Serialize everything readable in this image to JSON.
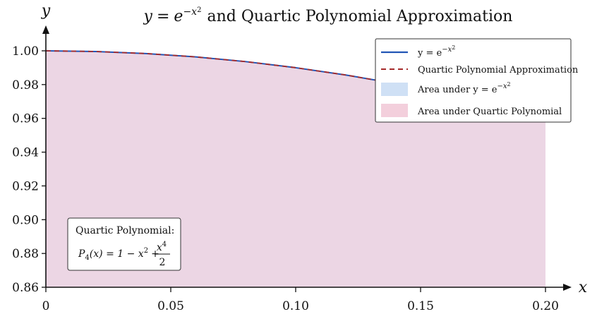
{
  "chart_data": {
    "type": "area",
    "title": {
      "lhs": "y",
      "eq": "=",
      "base": "e",
      "exp": "−x",
      "exp_pow": "2",
      "rest": "and Quartic Polynomial Approximation"
    },
    "xlabel": "x",
    "ylabel": "y",
    "xlim": [
      0,
      0.205
    ],
    "ylim": [
      0.86,
      1.005
    ],
    "x_ticks": [
      0,
      0.05,
      0.1,
      0.15,
      0.2
    ],
    "x_tick_labels": [
      "0",
      "0.05",
      "0.10",
      "0.15",
      "0.20"
    ],
    "y_ticks": [
      0.86,
      0.88,
      0.9,
      0.92,
      0.94,
      0.96,
      0.98,
      1.0
    ],
    "y_tick_labels": [
      "0.86",
      "0.88",
      "0.90",
      "0.92",
      "0.94",
      "0.96",
      "0.98",
      "1.00"
    ],
    "grid": false,
    "legend_placement": "top-right",
    "series": [
      {
        "key": "gauss",
        "style": "solid",
        "color": "#2255b5",
        "legend_text": "y = e",
        "legend_exp": "−x",
        "legend_exp_pow": "2",
        "x": [
          0,
          0.02,
          0.04,
          0.06,
          0.08,
          0.1,
          0.12,
          0.14,
          0.16,
          0.18,
          0.2
        ],
        "y": [
          1.0,
          0.9996,
          0.9984,
          0.9964,
          0.9936,
          0.99,
          0.9857,
          0.9806,
          0.9747,
          0.9681,
          0.9608
        ]
      },
      {
        "key": "quartic",
        "style": "dashed",
        "color": "#a52a2a",
        "legend_text": "Quartic Polynomial Approximation",
        "x": [
          0,
          0.02,
          0.04,
          0.06,
          0.08,
          0.1,
          0.12,
          0.14,
          0.16,
          0.18,
          0.2
        ],
        "y": [
          1.0,
          0.9996,
          0.9984,
          0.9964,
          0.9936,
          0.99,
          0.9857,
          0.9806,
          0.9747,
          0.9681,
          0.9608
        ]
      }
    ],
    "areas": [
      {
        "key": "gauss_area",
        "color": "#cfe0f5",
        "legend_text": "Area under y = e",
        "legend_exp": "−x",
        "legend_exp_pow": "2"
      },
      {
        "key": "quartic_area",
        "color": "#f3cfdc",
        "legend_text": "Area under Quartic Polynomial"
      }
    ],
    "annotation": {
      "heading": "Quartic Polynomial:",
      "p": "P",
      "sub": "4",
      "args": "(x) = 1 − x",
      "sq": "2",
      "plus": "+",
      "num": "x",
      "num_pow": "4",
      "den": "2"
    }
  }
}
